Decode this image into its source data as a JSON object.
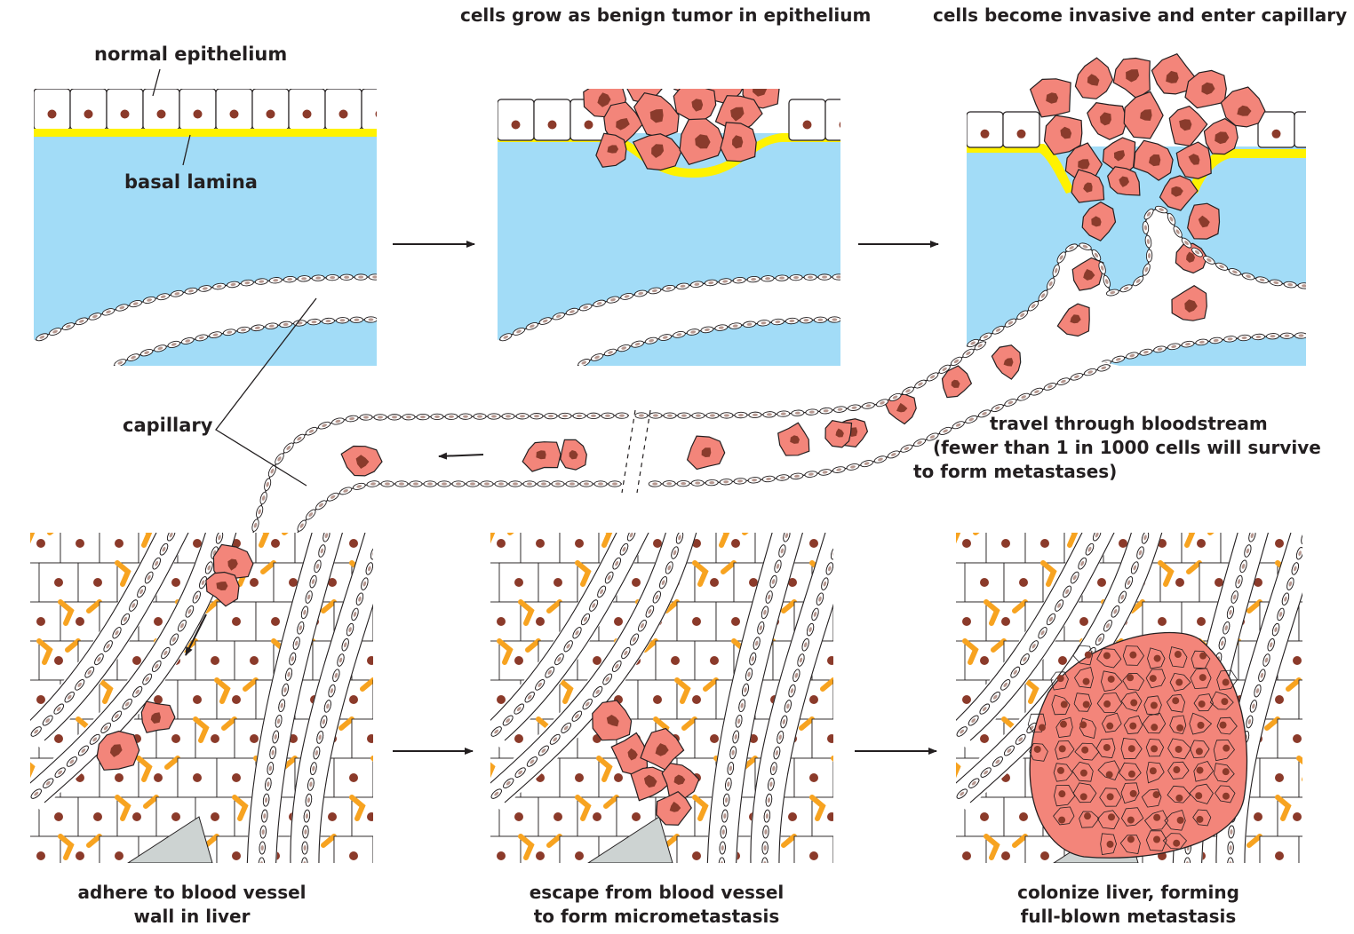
{
  "colors": {
    "stroma": "#a2dcf7",
    "basal_lamina": "#fff200",
    "tumor_cell": "#f3857a",
    "tumor_nucleus": "#8a3b2c",
    "nucleus": "#8b3a2a",
    "bile_canaliculi": "#f7a320",
    "endothelial_nucleus": "#b79890",
    "necrotic": "#cdd3d2",
    "line": "#231f20"
  },
  "labels": {
    "normal_epithelium": "normal epithelium",
    "basal_lamina": "basal lamina",
    "capillary": "capillary",
    "stage2": "cells grow as benign tumor in epithelium",
    "stage3": "cells become invasive and enter capillary",
    "stage4": [
      "travel through bloodstream",
      "(fewer than 1 in 1000 cells will survive",
      "to form metastases)"
    ],
    "stage5": [
      "adhere to blood vessel",
      "wall in liver"
    ],
    "stage6": [
      "escape from blood vessel",
      "to form micrometastasis"
    ],
    "stage7": [
      "colonize liver, forming",
      "full-blown metastasis"
    ]
  }
}
